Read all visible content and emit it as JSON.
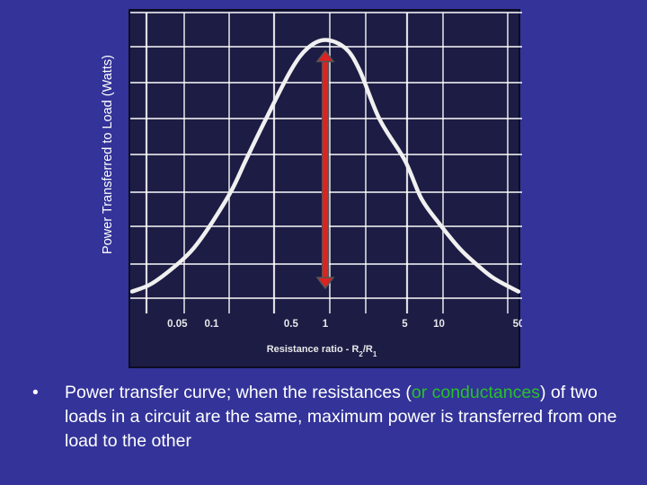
{
  "chart_data": {
    "type": "line",
    "title": "",
    "ylabel": "Power Transferred to Load (Watts)",
    "xlabel": "Resistance ratio - R2/R1",
    "xlabel_main": "Resistance ratio",
    "xlabel_ratio": "R",
    "xlabel_sub1": "2",
    "xlabel_slash": "/R",
    "xlabel_sub2": "1",
    "x_scale": "log",
    "xlim": [
      0.02,
      50
    ],
    "x_ticks": [
      "0.05",
      "0.1",
      "0.5",
      "1",
      "5",
      "10",
      "50"
    ],
    "x_tick_values": [
      0.05,
      0.1,
      0.5,
      1,
      5,
      10,
      50
    ],
    "y_ticks_shown": false,
    "ylim": [
      0,
      1.1
    ],
    "grid": true,
    "series": [
      {
        "x": [
          0.02,
          0.03,
          0.05,
          0.07,
          0.1,
          0.15,
          0.2,
          0.3,
          0.5,
          0.7,
          1,
          1.5,
          2,
          3,
          5,
          7,
          10,
          15,
          20,
          30,
          50
        ],
        "values": [
          0.08,
          0.11,
          0.18,
          0.24,
          0.33,
          0.45,
          0.56,
          0.71,
          0.89,
          0.97,
          1.0,
          0.97,
          0.89,
          0.71,
          0.56,
          0.42,
          0.33,
          0.24,
          0.19,
          0.13,
          0.08
        ]
      }
    ],
    "annotations": [
      {
        "type": "double-arrow",
        "x": 1,
        "y_from": 0.0,
        "y_to": 1.0,
        "color": "#dd2222"
      }
    ],
    "colors": {
      "curve": "#f0f0f0",
      "grid": "#ffffff",
      "arrow": "#dd2222",
      "background": "#1c1c44"
    }
  },
  "caption": {
    "bullet": "•",
    "part1": "Power transfer curve; when the resistances (",
    "highlight": "or conductances",
    "part2": ") of two loads in a circuit are the same, maximum power is transferred from one load to the other"
  },
  "colors": {
    "slide_bg": "#333399",
    "highlight": "#27c227",
    "text": "#ffffff"
  }
}
